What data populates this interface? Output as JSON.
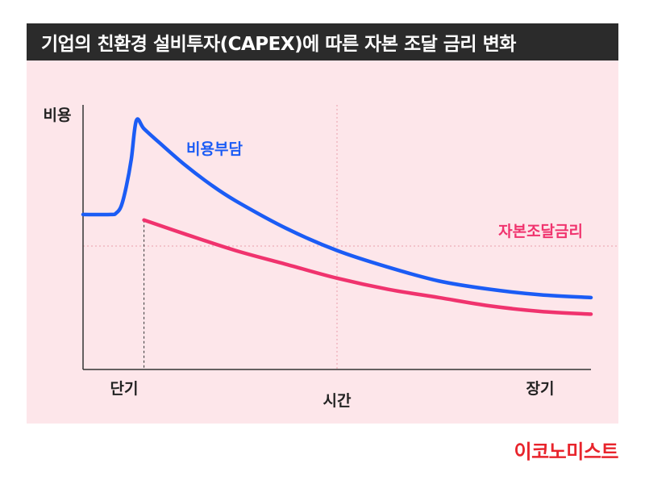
{
  "header": {
    "title": "기업의 친환경 설비투자(CAPEX)에 따른 자본 조달 금리 변화"
  },
  "brand": {
    "name": "이코노미스트",
    "color": "#e8242c"
  },
  "colors": {
    "title_bg": "#2b2b2b",
    "panel_bg": "#fde6ea",
    "guide": "#e9a0ac"
  },
  "chart_data": {
    "type": "line",
    "title": "기업의 친환경 설비투자(CAPEX)에 따른 자본 조달 금리 변화",
    "ylabel": "비용",
    "xlabel": "시간",
    "x_ticks": [
      {
        "label": "단기",
        "x": 1
      },
      {
        "label": "장기",
        "x": 9
      }
    ],
    "xlim": [
      0,
      10
    ],
    "ylim": [
      0,
      10
    ],
    "grid": "dotted guides",
    "series": [
      {
        "name": "비용부담",
        "color": "#1b5cf5",
        "x": [
          0,
          0.55,
          0.65,
          0.75,
          0.85,
          0.95,
          1.05,
          1.2,
          1.5,
          2,
          2.5,
          3,
          4,
          5,
          6,
          7,
          8,
          9,
          10
        ],
        "y": [
          5.6,
          5.6,
          5.65,
          5.9,
          6.6,
          7.6,
          9.0,
          8.7,
          8.2,
          7.4,
          6.7,
          6.1,
          5.1,
          4.3,
          3.7,
          3.2,
          2.9,
          2.7,
          2.6
        ]
      },
      {
        "name": "자본조달금리",
        "color": "#f0336e",
        "x": [
          1.2,
          2,
          3,
          4,
          5,
          6,
          7,
          8,
          9,
          10
        ],
        "y": [
          5.4,
          4.9,
          4.3,
          3.8,
          3.3,
          2.9,
          2.6,
          2.3,
          2.1,
          2.0
        ]
      }
    ]
  }
}
